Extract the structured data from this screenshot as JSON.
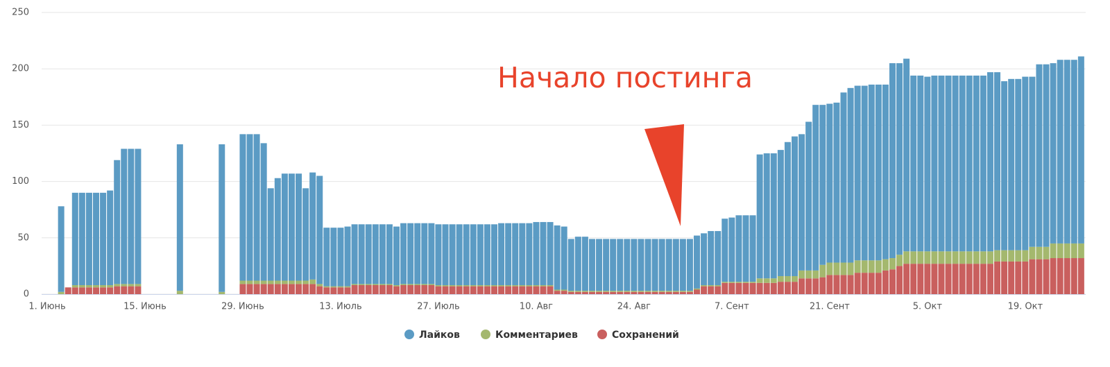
{
  "chart_data": {
    "type": "stacked_bar",
    "annotation": "Начало постинга",
    "categories": [
      "1. Июнь",
      null,
      null,
      null,
      null,
      null,
      null,
      null,
      null,
      null,
      null,
      null,
      null,
      null,
      "15. Июнь",
      null,
      null,
      null,
      null,
      null,
      null,
      null,
      null,
      null,
      null,
      null,
      null,
      null,
      "29. Июнь",
      null,
      null,
      null,
      null,
      null,
      null,
      null,
      null,
      null,
      null,
      null,
      null,
      null,
      "13. Июль",
      null,
      null,
      null,
      null,
      null,
      null,
      null,
      null,
      null,
      null,
      null,
      null,
      null,
      "27. Июль",
      null,
      null,
      null,
      null,
      null,
      null,
      null,
      null,
      null,
      null,
      null,
      null,
      null,
      "10. Авг",
      null,
      null,
      null,
      null,
      null,
      null,
      null,
      null,
      null,
      null,
      null,
      null,
      null,
      "24. Авг",
      null,
      null,
      null,
      null,
      null,
      null,
      null,
      null,
      null,
      null,
      null,
      null,
      null,
      "7. Сент",
      null,
      null,
      null,
      null,
      null,
      null,
      null,
      null,
      null,
      null,
      null,
      null,
      null,
      "21. Сент",
      null,
      null,
      null,
      null,
      null,
      null,
      null,
      null,
      null,
      null,
      null,
      null,
      null,
      "5. Окт",
      null,
      null,
      null,
      null,
      null,
      null,
      null,
      null,
      null,
      null,
      null,
      null,
      null,
      "19. Окт",
      null,
      null,
      null,
      null,
      null,
      null,
      null,
      null
    ],
    "series": [
      {
        "name": "Лайков",
        "color": "#5b9bc4",
        "values": [
          null,
          null,
          76,
          null,
          82,
          82,
          82,
          82,
          82,
          84,
          110,
          120,
          120,
          120,
          null,
          null,
          null,
          null,
          null,
          130,
          null,
          null,
          null,
          null,
          null,
          131,
          null,
          null,
          130,
          130,
          130,
          122,
          82,
          91,
          95,
          95,
          95,
          82,
          95,
          96,
          52,
          52,
          52,
          53,
          53,
          53,
          53,
          53,
          53,
          53,
          52,
          54,
          54,
          54,
          54,
          54,
          54,
          54,
          54,
          54,
          54,
          54,
          54,
          54,
          54,
          55,
          55,
          55,
          55,
          55,
          56,
          56,
          56,
          57,
          56,
          46,
          48,
          48,
          46,
          46,
          46,
          46,
          46,
          46,
          46,
          46,
          46,
          46,
          46,
          46,
          46,
          46,
          46,
          47,
          46,
          48,
          48,
          56,
          57,
          59,
          59,
          59,
          110,
          111,
          111,
          112,
          119,
          124,
          121,
          132,
          147,
          142,
          141,
          142,
          151,
          155,
          155,
          155,
          156,
          156,
          155,
          173,
          170,
          171,
          156,
          156,
          155,
          156,
          156,
          156,
          156,
          156,
          156,
          156,
          156,
          159,
          158,
          150,
          152,
          152,
          154,
          151,
          162,
          162,
          160,
          163,
          163,
          163,
          166
        ]
      },
      {
        "name": "Комментариев",
        "color": "#a4b86e",
        "values": [
          null,
          null,
          2,
          null,
          2,
          2,
          2,
          2,
          2,
          2,
          2,
          2,
          2,
          2,
          null,
          null,
          null,
          null,
          null,
          3,
          null,
          null,
          null,
          null,
          null,
          2,
          null,
          null,
          3,
          3,
          3,
          3,
          3,
          3,
          3,
          3,
          3,
          3,
          4,
          2,
          1,
          1,
          1,
          1,
          1,
          1,
          1,
          1,
          1,
          1,
          1,
          1,
          1,
          1,
          1,
          1,
          1,
          1,
          1,
          1,
          1,
          1,
          1,
          1,
          1,
          1,
          1,
          1,
          1,
          1,
          1,
          1,
          1,
          1,
          1,
          1,
          1,
          1,
          1,
          1,
          1,
          1,
          1,
          1,
          1,
          1,
          1,
          1,
          1,
          1,
          1,
          1,
          1,
          1,
          1,
          1,
          1,
          1,
          1,
          1,
          1,
          1,
          4,
          4,
          4,
          5,
          5,
          5,
          7,
          7,
          7,
          11,
          11,
          11,
          11,
          11,
          11,
          11,
          11,
          11,
          10,
          10,
          10,
          11,
          11,
          11,
          11,
          11,
          11,
          11,
          11,
          11,
          11,
          11,
          11,
          11,
          10,
          10,
          10,
          10,
          10,
          11,
          11,
          11,
          13,
          13,
          13,
          13,
          13
        ]
      },
      {
        "name": "Сохранений",
        "color": "#c95f5e",
        "values": [
          null,
          null,
          null,
          6,
          6,
          6,
          6,
          6,
          6,
          6,
          7,
          7,
          7,
          7,
          null,
          null,
          null,
          null,
          null,
          null,
          null,
          null,
          null,
          null,
          null,
          null,
          null,
          null,
          9,
          9,
          9,
          9,
          9,
          9,
          9,
          9,
          9,
          9,
          9,
          7,
          6,
          6,
          6,
          6,
          8,
          8,
          8,
          8,
          8,
          8,
          7,
          8,
          8,
          8,
          8,
          8,
          7,
          7,
          7,
          7,
          7,
          7,
          7,
          7,
          7,
          7,
          7,
          7,
          7,
          7,
          7,
          7,
          7,
          3,
          3,
          2,
          2,
          2,
          2,
          2,
          2,
          2,
          2,
          2,
          2,
          2,
          2,
          2,
          2,
          2,
          2,
          2,
          2,
          4,
          7,
          7,
          7,
          10,
          10,
          10,
          10,
          10,
          10,
          10,
          10,
          11,
          11,
          11,
          14,
          14,
          14,
          15,
          17,
          17,
          17,
          17,
          19,
          19,
          19,
          19,
          21,
          22,
          25,
          27,
          27,
          27,
          27,
          27,
          27,
          27,
          27,
          27,
          27,
          27,
          27,
          27,
          29,
          29,
          29,
          29,
          29,
          31,
          31,
          31,
          32,
          32,
          32,
          32,
          32
        ]
      }
    ],
    "ylim": [
      0,
      250
    ],
    "yticks": [
      0,
      50,
      100,
      150,
      200,
      250
    ],
    "grid": true,
    "legend": "bottom"
  }
}
